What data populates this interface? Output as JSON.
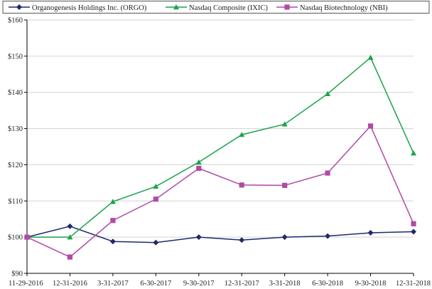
{
  "chart_data": {
    "type": "line",
    "title": "",
    "xlabel": "",
    "ylabel": "",
    "categories": [
      "11-29-2016",
      "12-31-2016",
      "3-31-2017",
      "6-30-2017",
      "9-30-2017",
      "12-31-2017",
      "3-31-2018",
      "6-30-2018",
      "9-30-2018",
      "12-31-2018"
    ],
    "ylim": [
      90,
      160
    ],
    "y_ticks": [
      "$90",
      "$100",
      "$110",
      "$120",
      "$130",
      "$140",
      "$150",
      "$160"
    ],
    "y_tick_values": [
      90,
      100,
      110,
      120,
      130,
      140,
      150,
      160
    ],
    "grid": true,
    "legend_position": "top",
    "series": [
      {
        "name": "Organogenesis Holdings Inc. (ORGO)",
        "marker": "diamond",
        "color": "#1f2a6b",
        "values": [
          100.0,
          103.0,
          98.8,
          98.5,
          100.0,
          99.2,
          100.0,
          100.3,
          101.2,
          101.5
        ]
      },
      {
        "name": "Nasdaq Composite (IXIC)",
        "marker": "triangle",
        "color": "#1aa34a",
        "values": [
          100.0,
          100.0,
          109.8,
          114.0,
          120.7,
          128.3,
          131.2,
          139.6,
          149.6,
          123.2
        ]
      },
      {
        "name": "Nasdaq Biotechnology (NBI)",
        "marker": "square",
        "color": "#b04aa5",
        "values": [
          100.0,
          94.5,
          104.6,
          110.5,
          119.0,
          114.4,
          114.3,
          117.7,
          130.7,
          103.7
        ]
      }
    ]
  }
}
